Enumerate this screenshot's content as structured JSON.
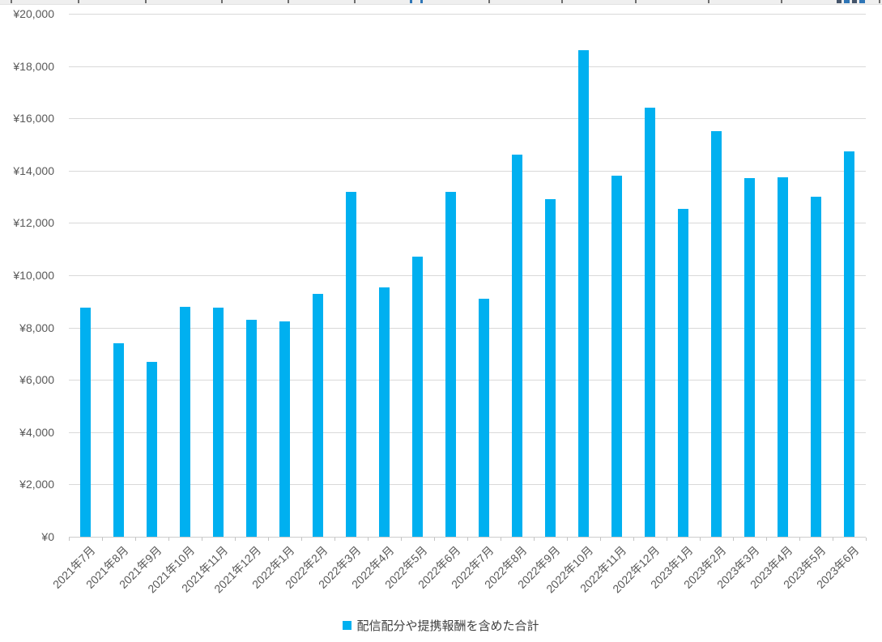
{
  "chart_data": {
    "type": "bar",
    "title": "",
    "xlabel": "",
    "ylabel": "",
    "categories": [
      "2021年7月",
      "2021年8月",
      "2021年9月",
      "2021年10月",
      "2021年11月",
      "2021年12月",
      "2022年1月",
      "2022年2月",
      "2022年3月",
      "2022年4月",
      "2022年5月",
      "2022年6月",
      "2022年7月",
      "2022年8月",
      "2022年9月",
      "2022年10月",
      "2022年11月",
      "2022年12月",
      "2023年1月",
      "2023年2月",
      "2023年3月",
      "2023年4月",
      "2023年5月",
      "2023年6月"
    ],
    "series": [
      {
        "name": "配信配分や提携報酬を含めた合計",
        "values": [
          8750,
          7400,
          6700,
          8800,
          8750,
          8300,
          8250,
          9300,
          13200,
          9550,
          10700,
          13200,
          9100,
          14600,
          12900,
          18600,
          13800,
          16400,
          12550,
          15500,
          13700,
          13750,
          13000,
          14750
        ]
      }
    ],
    "ylim": [
      0,
      20000
    ],
    "y_ticks": [
      0,
      2000,
      4000,
      6000,
      8000,
      10000,
      12000,
      14000,
      16000,
      18000,
      20000
    ],
    "y_tick_labels": [
      "¥0",
      "¥2,000",
      "¥4,000",
      "¥6,000",
      "¥8,000",
      "¥10,000",
      "¥12,000",
      "¥14,000",
      "¥16,000",
      "¥18,000",
      "¥20,000"
    ],
    "grid": true,
    "legend_position": "bottom",
    "colors": {
      "bar": "#00B0F0",
      "gridline": "#D9D9D9",
      "axis_line": "#CCCCCC",
      "axis_text": "#595959",
      "legend_text": "#404040"
    }
  }
}
